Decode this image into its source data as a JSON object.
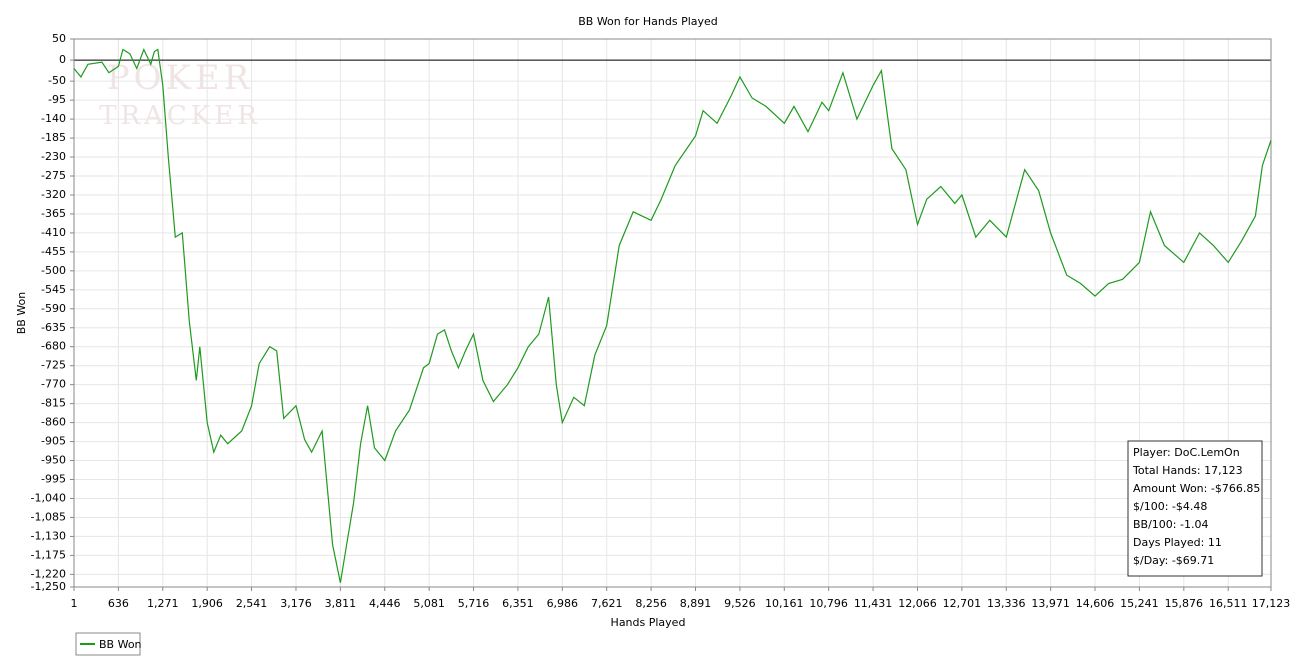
{
  "chart_data": {
    "type": "line",
    "title": "BB Won for Hands Played",
    "x_label": "Hands Played",
    "y_label": "BB Won",
    "watermark": [
      "POKER",
      "TRACKER"
    ],
    "xlim": [
      1,
      17123
    ],
    "ylim": [
      -1250,
      50
    ],
    "grid": true,
    "xticks": [
      1,
      636,
      {
        "value": 1271,
        "label": "1,271"
      },
      {
        "value": 1906,
        "label": "1,906"
      },
      {
        "value": 2541,
        "label": "2,541"
      },
      {
        "value": 3176,
        "label": "3,176"
      },
      {
        "value": 3811,
        "label": "3,811"
      },
      {
        "value": 4446,
        "label": "4,446"
      },
      {
        "value": 5081,
        "label": "5,081"
      },
      {
        "value": 5716,
        "label": "5,716"
      },
      {
        "value": 6351,
        "label": "6,351"
      },
      {
        "value": 6986,
        "label": "6,986"
      },
      {
        "value": 7621,
        "label": "7,621"
      },
      {
        "value": 8256,
        "label": "8,256"
      },
      {
        "value": 8891,
        "label": "8,891"
      },
      {
        "value": 9526,
        "label": "9,526"
      },
      {
        "value": 10161,
        "label": "10,161"
      },
      {
        "value": 10796,
        "label": "10,796"
      },
      {
        "value": 11431,
        "label": "11,431"
      },
      {
        "value": 12066,
        "label": "12,066"
      },
      {
        "value": 12701,
        "label": "12,701"
      },
      {
        "value": 13336,
        "label": "13,336"
      },
      {
        "value": 13971,
        "label": "13,971"
      },
      {
        "value": 14606,
        "label": "14,606"
      },
      {
        "value": 15241,
        "label": "15,241"
      },
      {
        "value": 15876,
        "label": "15,876"
      },
      {
        "value": 16511,
        "label": "16,511"
      },
      {
        "value": 17123,
        "label": "17,123"
      }
    ],
    "yticks": [
      50,
      0,
      -50,
      -95,
      -140,
      -185,
      -230,
      -275,
      -320,
      -365,
      -410,
      -455,
      -500,
      -545,
      -590,
      -635,
      -680,
      -725,
      -770,
      -815,
      -860,
      -905,
      -950,
      -995,
      {
        "value": -1040,
        "label": "-1,040"
      },
      {
        "value": -1085,
        "label": "-1,085"
      },
      {
        "value": -1130,
        "label": "-1,130"
      },
      {
        "value": -1175,
        "label": "-1,175"
      },
      {
        "value": -1220,
        "label": "-1,220"
      },
      {
        "value": -1250,
        "label": "-1,250"
      }
    ],
    "x": [
      1,
      100,
      200,
      400,
      500,
      636,
      700,
      800,
      900,
      1000,
      1100,
      1150,
      1200,
      1271,
      1350,
      1450,
      1550,
      1650,
      1750,
      1800,
      1906,
      2000,
      2100,
      2200,
      2400,
      2541,
      2650,
      2800,
      2900,
      3000,
      3176,
      3300,
      3400,
      3550,
      3700,
      3811,
      3900,
      4000,
      4100,
      4200,
      4300,
      4446,
      4600,
      4800,
      5000,
      5081,
      5200,
      5300,
      5400,
      5500,
      5600,
      5716,
      5850,
      6000,
      6200,
      6351,
      6500,
      6650,
      6790,
      6900,
      6986,
      7150,
      7300,
      7450,
      7621,
      7800,
      8000,
      8256,
      8400,
      8600,
      8891,
      9000,
      9200,
      9400,
      9526,
      9700,
      9900,
      10161,
      10300,
      10500,
      10700,
      10796,
      11000,
      11200,
      11431,
      11550,
      11700,
      11900,
      12066,
      12200,
      12400,
      12600,
      12701,
      12900,
      13100,
      13336,
      13600,
      13800,
      13971,
      14200,
      14400,
      14606,
      14800,
      15000,
      15241,
      15400,
      15600,
      15876,
      16100,
      16300,
      16511,
      16700,
      16900,
      17000,
      17123
    ],
    "series": [
      {
        "name": "BB Won",
        "color": "#1f9a1f",
        "values": [
          -20,
          -40,
          -10,
          -5,
          -30,
          -15,
          25,
          15,
          -20,
          25,
          -10,
          20,
          25,
          -60,
          -230,
          -420,
          -410,
          -620,
          -760,
          -680,
          -860,
          -930,
          -890,
          -910,
          -880,
          -820,
          -720,
          -680,
          -690,
          -850,
          -820,
          -900,
          -930,
          -880,
          -1150,
          -1240,
          -1150,
          -1050,
          -910,
          -820,
          -920,
          -950,
          -880,
          -830,
          -730,
          -720,
          -650,
          -640,
          -690,
          -730,
          -690,
          -650,
          -760,
          -810,
          -770,
          -730,
          -680,
          -650,
          -562,
          -770,
          -860,
          -800,
          -820,
          -700,
          -630,
          -440,
          -360,
          -380,
          -330,
          -250,
          -180,
          -120,
          -150,
          -85,
          -40,
          -90,
          -110,
          -150,
          -110,
          -170,
          -100,
          -120,
          -30,
          -140,
          -60,
          -25,
          -210,
          -260,
          -390,
          -330,
          -300,
          -340,
          -320,
          -420,
          -380,
          -420,
          -260,
          -310,
          -410,
          -510,
          -530,
          -560,
          -530,
          -520,
          -480,
          -360,
          -440,
          -480,
          -410,
          -440,
          -480,
          -430,
          -370,
          -250,
          -190
        ]
      }
    ],
    "info": [
      "Player: DoC.LemOn",
      "Total Hands: 17,123",
      "Amount Won: -$766.85",
      "$/100: -$4.48",
      "BB/100: -1.04",
      "Days Played: 11",
      "$/Day: -$69.71"
    ]
  }
}
